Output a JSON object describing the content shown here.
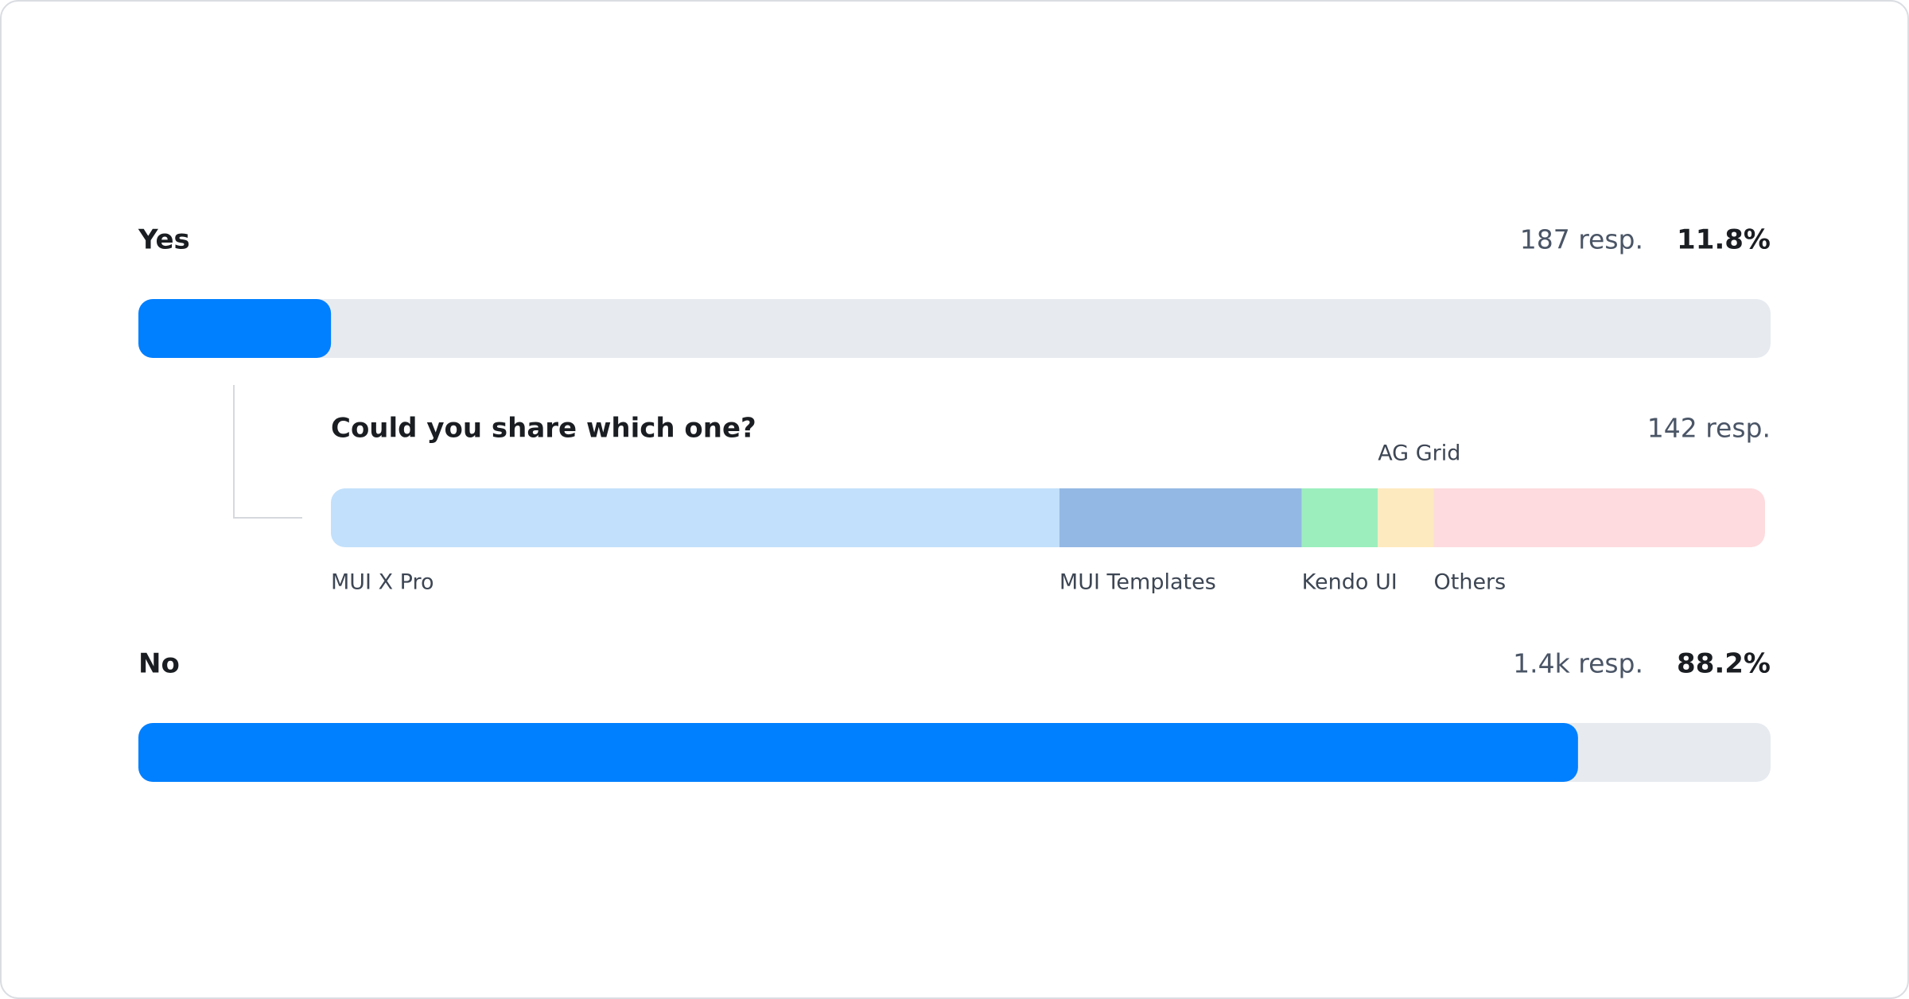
{
  "options": [
    {
      "label": "Yes",
      "responses": "187 resp.",
      "percent": 11.8,
      "percent_label": "11.8%",
      "followup": {
        "question": "Could you share which one?",
        "responses": "142 resp.",
        "segments": [
          {
            "name": "MUI X Pro",
            "color": "#c2e0fb",
            "value": 50.8
          },
          {
            "name": "MUI Templates",
            "color": "#94b8e4",
            "value": 16.9
          },
          {
            "name": "Kendo UI",
            "color": "#9cefbd",
            "value": 5.3
          },
          {
            "name": "AG Grid",
            "color": "#fdeabf",
            "value": 3.9
          },
          {
            "name": "Others",
            "color": "#fddbde",
            "value": 23.1
          }
        ]
      }
    },
    {
      "label": "No",
      "responses": "1.4k resp.",
      "percent": 88.2,
      "percent_label": "88.2%"
    }
  ],
  "bar_color": "#007fff",
  "track_color": "#e7ebf0",
  "scale_max": 100
}
